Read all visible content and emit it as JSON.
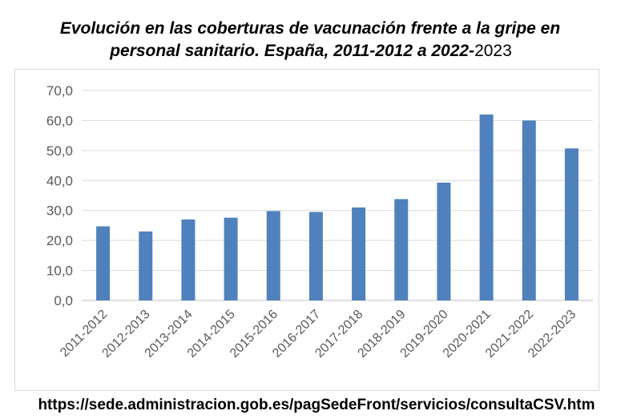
{
  "title": {
    "line1": "Evolución en las coberturas de vacunación frente a la gripe en",
    "line2_bold": "personal sanitario. España, 2011-2012 a 2022-",
    "line2_tail": "2023"
  },
  "source_url": "https://sede.administracion.gob.es/pagSedeFront/servicios/consultaCSV.htm",
  "colors": {
    "bar": "#4f81bd",
    "grid": "#d9d9d9",
    "axis_text": "#595959"
  },
  "chart_data": {
    "type": "bar",
    "categories": [
      "2011-2012",
      "2012-2013",
      "2013-2014",
      "2014-2015",
      "2015-2016",
      "2016-2017",
      "2017-2018",
      "2018-2019",
      "2019-2020",
      "2020-2021",
      "2021-2022",
      "2022-2023"
    ],
    "values": [
      24.7,
      23.0,
      27.0,
      27.6,
      29.8,
      29.5,
      31.0,
      33.8,
      39.3,
      62.0,
      60.0,
      50.7
    ],
    "ylim": [
      0,
      70
    ],
    "yticks": [
      "0,0",
      "10,0",
      "20,0",
      "30,0",
      "40,0",
      "50,0",
      "60,0",
      "70,0"
    ],
    "xlabel": "",
    "ylabel": "",
    "grid": true,
    "legend": "none"
  }
}
